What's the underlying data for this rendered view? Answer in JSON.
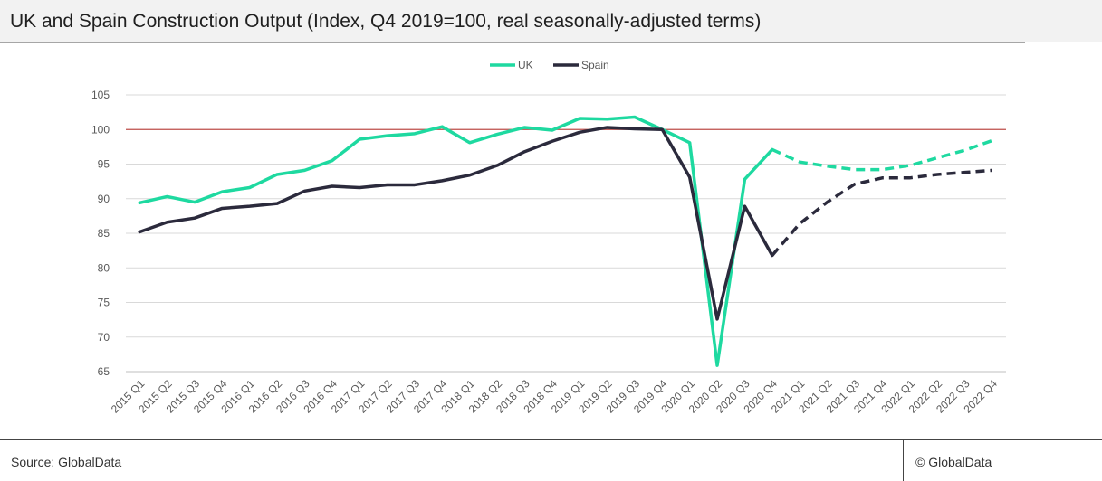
{
  "header": {
    "title": "UK and Spain Construction Output (Index, Q4 2019=100, real seasonally-adjusted terms)"
  },
  "footer": {
    "source": "Source: GlobalData",
    "copyright": "© GlobalData"
  },
  "colors": {
    "uk": "#1ed9a0",
    "spain": "#2b2a3c",
    "reference": "#c0504d",
    "grid": "#d9d9d9"
  },
  "chart_data": {
    "type": "line",
    "title": "UK and Spain Construction Output (Index, Q4 2019=100, real seasonally-adjusted terms)",
    "categories": [
      "2015 Q1",
      "2015 Q2",
      "2015 Q3",
      "2015 Q4",
      "2016 Q1",
      "2016 Q2",
      "2016 Q3",
      "2016 Q4",
      "2017 Q1",
      "2017 Q2",
      "2017 Q3",
      "2017 Q4",
      "2018 Q1",
      "2018 Q2",
      "2018 Q3",
      "2018 Q4",
      "2019 Q1",
      "2019 Q2",
      "2019 Q3",
      "2019 Q4",
      "2020 Q1",
      "2020 Q2",
      "2020 Q3",
      "2020 Q4",
      "2021 Q1",
      "2021 Q2",
      "2021 Q3",
      "2021 Q4",
      "2022 Q1",
      "2022 Q2",
      "2022 Q3",
      "2022 Q4"
    ],
    "series": [
      {
        "name": "UK",
        "values": [
          89.4,
          90.3,
          89.5,
          91.0,
          91.6,
          93.5,
          94.1,
          95.5,
          98.6,
          99.1,
          99.4,
          100.4,
          98.1,
          99.3,
          100.3,
          99.9,
          101.6,
          101.5,
          101.8,
          100.0,
          98.1,
          65.9,
          92.8,
          97.1,
          95.3,
          94.7,
          94.2,
          94.2,
          94.8,
          95.9,
          97.0,
          98.4
        ],
        "forecast_from_index": 23
      },
      {
        "name": "Spain",
        "values": [
          85.2,
          86.6,
          87.2,
          88.6,
          88.9,
          89.3,
          91.1,
          91.8,
          91.6,
          92.0,
          92.0,
          92.6,
          93.4,
          94.8,
          96.8,
          98.3,
          99.6,
          100.3,
          100.1,
          100.0,
          93.1,
          72.6,
          88.9,
          81.8,
          86.4,
          89.5,
          92.1,
          93.0,
          93.0,
          93.5,
          93.8,
          94.1
        ],
        "forecast_from_index": 23
      }
    ],
    "reference_line": 100,
    "ylim": [
      65,
      105
    ],
    "yticks": [
      65,
      70,
      75,
      80,
      85,
      90,
      95,
      100,
      105
    ],
    "xlabel": "",
    "ylabel": "",
    "grid": true,
    "legend": "top-center"
  }
}
